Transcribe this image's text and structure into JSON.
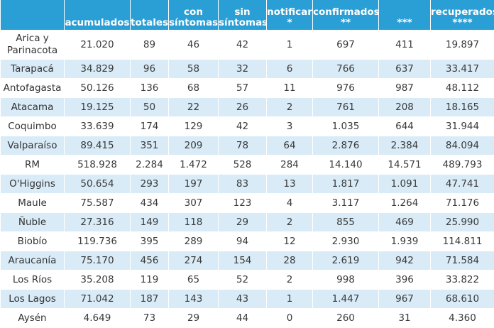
{
  "columns": [
    "",
    "acumulados",
    "totales",
    "con\nsíntomas",
    "sin\nsíntomas",
    "notificar\n*",
    "confirmados\n**",
    "***",
    "recuperados\n****"
  ],
  "rows": [
    {
      "region": "Arica y\nParinacota",
      "cells": [
        "21.020",
        "89",
        "46",
        "42",
        "1",
        "697",
        "411",
        "19.897"
      ]
    },
    {
      "region": "Tarapacá",
      "cells": [
        "34.829",
        "96",
        "58",
        "32",
        "6",
        "766",
        "637",
        "33.417"
      ]
    },
    {
      "region": "Antofagasta",
      "cells": [
        "50.126",
        "136",
        "68",
        "57",
        "11",
        "976",
        "987",
        "48.112"
      ]
    },
    {
      "region": "Atacama",
      "cells": [
        "19.125",
        "50",
        "22",
        "26",
        "2",
        "761",
        "208",
        "18.165"
      ]
    },
    {
      "region": "Coquimbo",
      "cells": [
        "33.639",
        "174",
        "129",
        "42",
        "3",
        "1.035",
        "644",
        "31.944"
      ]
    },
    {
      "region": "Valparaíso",
      "cells": [
        "89.415",
        "351",
        "209",
        "78",
        "64",
        "2.876",
        "2.384",
        "84.094"
      ]
    },
    {
      "region": "RM",
      "cells": [
        "518.928",
        "2.284",
        "1.472",
        "528",
        "284",
        "14.140",
        "14.571",
        "489.793"
      ]
    },
    {
      "region": "O'Higgins",
      "cells": [
        "50.654",
        "293",
        "197",
        "83",
        "13",
        "1.817",
        "1.091",
        "47.741"
      ]
    },
    {
      "region": "Maule",
      "cells": [
        "75.587",
        "434",
        "307",
        "123",
        "4",
        "3.117",
        "1.264",
        "71.176"
      ]
    },
    {
      "region": "Ñuble",
      "cells": [
        "27.316",
        "149",
        "118",
        "29",
        "2",
        "855",
        "469",
        "25.990"
      ]
    },
    {
      "region": "Biobío",
      "cells": [
        "119.736",
        "395",
        "289",
        "94",
        "12",
        "2.930",
        "1.939",
        "114.811"
      ]
    },
    {
      "region": "Araucanía",
      "cells": [
        "75.170",
        "456",
        "274",
        "154",
        "28",
        "2.619",
        "942",
        "71.584"
      ]
    },
    {
      "region": "Los Ríos",
      "cells": [
        "35.208",
        "119",
        "65",
        "52",
        "2",
        "998",
        "396",
        "33.822"
      ]
    },
    {
      "region": "Los Lagos",
      "cells": [
        "71.042",
        "187",
        "143",
        "43",
        "1",
        "1.447",
        "967",
        "68.610"
      ]
    },
    {
      "region": "Aysén",
      "cells": [
        "4.649",
        "73",
        "29",
        "44",
        "0",
        "260",
        "31",
        "4.360"
      ]
    }
  ]
}
